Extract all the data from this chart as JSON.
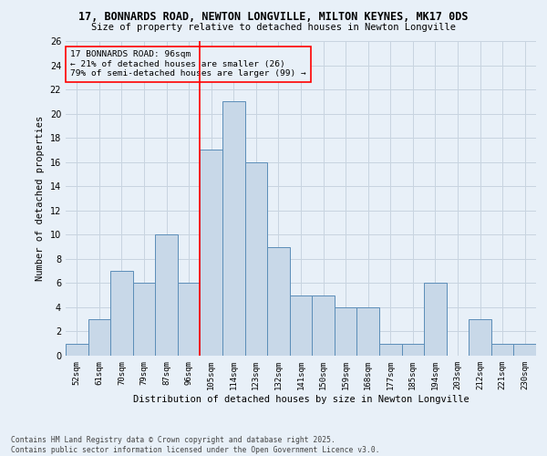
{
  "title": "17, BONNARDS ROAD, NEWTON LONGVILLE, MILTON KEYNES, MK17 0DS",
  "subtitle": "Size of property relative to detached houses in Newton Longville",
  "xlabel": "Distribution of detached houses by size in Newton Longville",
  "ylabel": "Number of detached properties",
  "categories": [
    "52sqm",
    "61sqm",
    "70sqm",
    "79sqm",
    "87sqm",
    "96sqm",
    "105sqm",
    "114sqm",
    "123sqm",
    "132sqm",
    "141sqm",
    "150sqm",
    "159sqm",
    "168sqm",
    "177sqm",
    "185sqm",
    "194sqm",
    "203sqm",
    "212sqm",
    "221sqm",
    "230sqm"
  ],
  "values": [
    1,
    3,
    7,
    6,
    10,
    6,
    17,
    21,
    16,
    9,
    5,
    5,
    4,
    4,
    1,
    1,
    6,
    0,
    3,
    1,
    1
  ],
  "bar_color": "#c8d8e8",
  "bar_edge_color": "#5b8db8",
  "grid_color": "#c8d4e0",
  "background_color": "#e8f0f8",
  "annotation_box_text": "17 BONNARDS ROAD: 96sqm\n← 21% of detached houses are smaller (26)\n79% of semi-detached houses are larger (99) →",
  "vline_x": 5.5,
  "ylim": [
    0,
    26
  ],
  "yticks": [
    0,
    2,
    4,
    6,
    8,
    10,
    12,
    14,
    16,
    18,
    20,
    22,
    24,
    26
  ],
  "footer_text": "Contains HM Land Registry data © Crown copyright and database right 2025.\nContains public sector information licensed under the Open Government Licence v3.0."
}
